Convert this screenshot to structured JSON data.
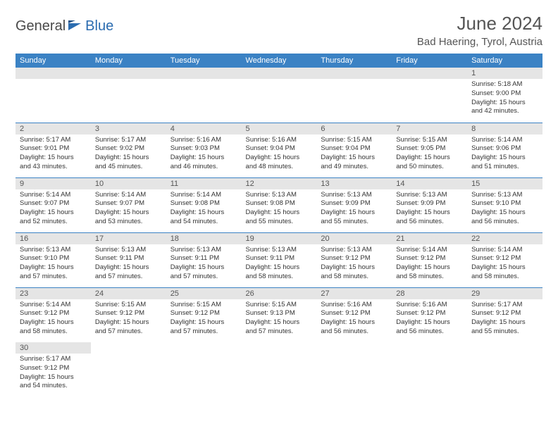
{
  "logo": {
    "general": "General",
    "blue": "Blue"
  },
  "title": "June 2024",
  "location": "Bad Haering, Tyrol, Austria",
  "colors": {
    "header_bg": "#3b82c4",
    "header_text": "#ffffff",
    "daynum_bg": "#e5e5e5",
    "border": "#3b82c4",
    "logo_blue": "#2b6cb0",
    "text": "#333333"
  },
  "weekdays": [
    "Sunday",
    "Monday",
    "Tuesday",
    "Wednesday",
    "Thursday",
    "Friday",
    "Saturday"
  ],
  "weeks": [
    [
      null,
      null,
      null,
      null,
      null,
      null,
      {
        "n": "1",
        "sr": "5:18 AM",
        "ss": "9:00 PM",
        "dl": "15 hours and 42 minutes."
      }
    ],
    [
      {
        "n": "2",
        "sr": "5:17 AM",
        "ss": "9:01 PM",
        "dl": "15 hours and 43 minutes."
      },
      {
        "n": "3",
        "sr": "5:17 AM",
        "ss": "9:02 PM",
        "dl": "15 hours and 45 minutes."
      },
      {
        "n": "4",
        "sr": "5:16 AM",
        "ss": "9:03 PM",
        "dl": "15 hours and 46 minutes."
      },
      {
        "n": "5",
        "sr": "5:16 AM",
        "ss": "9:04 PM",
        "dl": "15 hours and 48 minutes."
      },
      {
        "n": "6",
        "sr": "5:15 AM",
        "ss": "9:04 PM",
        "dl": "15 hours and 49 minutes."
      },
      {
        "n": "7",
        "sr": "5:15 AM",
        "ss": "9:05 PM",
        "dl": "15 hours and 50 minutes."
      },
      {
        "n": "8",
        "sr": "5:14 AM",
        "ss": "9:06 PM",
        "dl": "15 hours and 51 minutes."
      }
    ],
    [
      {
        "n": "9",
        "sr": "5:14 AM",
        "ss": "9:07 PM",
        "dl": "15 hours and 52 minutes."
      },
      {
        "n": "10",
        "sr": "5:14 AM",
        "ss": "9:07 PM",
        "dl": "15 hours and 53 minutes."
      },
      {
        "n": "11",
        "sr": "5:14 AM",
        "ss": "9:08 PM",
        "dl": "15 hours and 54 minutes."
      },
      {
        "n": "12",
        "sr": "5:13 AM",
        "ss": "9:08 PM",
        "dl": "15 hours and 55 minutes."
      },
      {
        "n": "13",
        "sr": "5:13 AM",
        "ss": "9:09 PM",
        "dl": "15 hours and 55 minutes."
      },
      {
        "n": "14",
        "sr": "5:13 AM",
        "ss": "9:09 PM",
        "dl": "15 hours and 56 minutes."
      },
      {
        "n": "15",
        "sr": "5:13 AM",
        "ss": "9:10 PM",
        "dl": "15 hours and 56 minutes."
      }
    ],
    [
      {
        "n": "16",
        "sr": "5:13 AM",
        "ss": "9:10 PM",
        "dl": "15 hours and 57 minutes."
      },
      {
        "n": "17",
        "sr": "5:13 AM",
        "ss": "9:11 PM",
        "dl": "15 hours and 57 minutes."
      },
      {
        "n": "18",
        "sr": "5:13 AM",
        "ss": "9:11 PM",
        "dl": "15 hours and 57 minutes."
      },
      {
        "n": "19",
        "sr": "5:13 AM",
        "ss": "9:11 PM",
        "dl": "15 hours and 58 minutes."
      },
      {
        "n": "20",
        "sr": "5:13 AM",
        "ss": "9:12 PM",
        "dl": "15 hours and 58 minutes."
      },
      {
        "n": "21",
        "sr": "5:14 AM",
        "ss": "9:12 PM",
        "dl": "15 hours and 58 minutes."
      },
      {
        "n": "22",
        "sr": "5:14 AM",
        "ss": "9:12 PM",
        "dl": "15 hours and 58 minutes."
      }
    ],
    [
      {
        "n": "23",
        "sr": "5:14 AM",
        "ss": "9:12 PM",
        "dl": "15 hours and 58 minutes."
      },
      {
        "n": "24",
        "sr": "5:15 AM",
        "ss": "9:12 PM",
        "dl": "15 hours and 57 minutes."
      },
      {
        "n": "25",
        "sr": "5:15 AM",
        "ss": "9:12 PM",
        "dl": "15 hours and 57 minutes."
      },
      {
        "n": "26",
        "sr": "5:15 AM",
        "ss": "9:13 PM",
        "dl": "15 hours and 57 minutes."
      },
      {
        "n": "27",
        "sr": "5:16 AM",
        "ss": "9:12 PM",
        "dl": "15 hours and 56 minutes."
      },
      {
        "n": "28",
        "sr": "5:16 AM",
        "ss": "9:12 PM",
        "dl": "15 hours and 56 minutes."
      },
      {
        "n": "29",
        "sr": "5:17 AM",
        "ss": "9:12 PM",
        "dl": "15 hours and 55 minutes."
      }
    ],
    [
      {
        "n": "30",
        "sr": "5:17 AM",
        "ss": "9:12 PM",
        "dl": "15 hours and 54 minutes."
      },
      null,
      null,
      null,
      null,
      null,
      null
    ]
  ],
  "labels": {
    "sunrise": "Sunrise:",
    "sunset": "Sunset:",
    "daylight": "Daylight:"
  }
}
